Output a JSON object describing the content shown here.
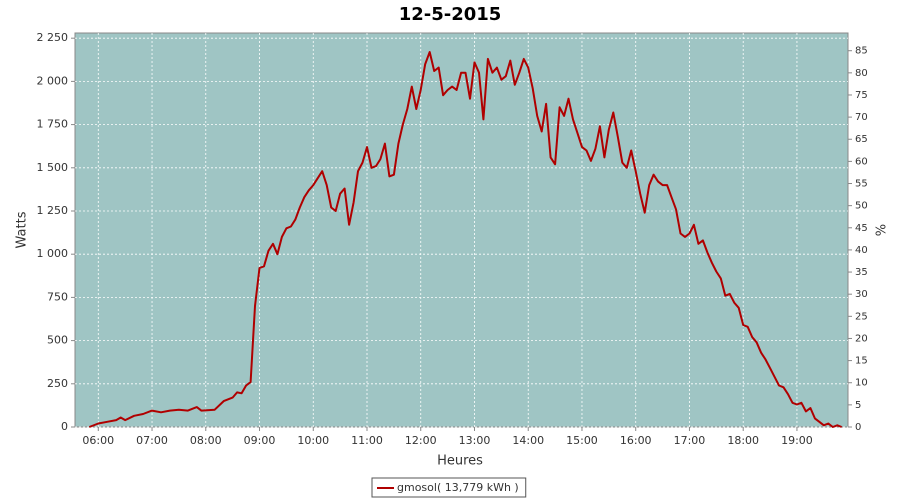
{
  "chart_data": {
    "type": "line",
    "title": "12-5-2015",
    "x_label": "Heures",
    "y_label": "Watts",
    "y2_label": "%",
    "x": [
      "05:50",
      "06:00",
      "06:10",
      "06:20",
      "06:25",
      "06:30",
      "06:40",
      "06:50",
      "07:00",
      "07:10",
      "07:20",
      "07:30",
      "07:40",
      "07:50",
      "07:55",
      "08:10",
      "08:20",
      "08:30",
      "08:35",
      "08:40",
      "08:45",
      "08:50",
      "08:55",
      "09:00",
      "09:05",
      "09:10",
      "09:15",
      "09:20",
      "09:25",
      "09:30",
      "09:35",
      "09:40",
      "09:45",
      "09:50",
      "09:55",
      "10:00",
      "10:05",
      "10:10",
      "10:15",
      "10:20",
      "10:25",
      "10:30",
      "10:35",
      "10:40",
      "10:45",
      "10:50",
      "10:55",
      "11:00",
      "11:05",
      "11:10",
      "11:15",
      "11:20",
      "11:25",
      "11:30",
      "11:35",
      "11:40",
      "11:45",
      "11:50",
      "11:55",
      "12:00",
      "12:05",
      "12:10",
      "12:15",
      "12:20",
      "12:25",
      "12:30",
      "12:35",
      "12:40",
      "12:45",
      "12:50",
      "12:55",
      "13:00",
      "13:05",
      "13:10",
      "13:15",
      "13:20",
      "13:25",
      "13:30",
      "13:35",
      "13:40",
      "13:45",
      "13:50",
      "13:55",
      "14:00",
      "14:05",
      "14:10",
      "14:15",
      "14:20",
      "14:25",
      "14:30",
      "14:35",
      "14:40",
      "14:45",
      "14:50",
      "14:55",
      "15:00",
      "15:05",
      "15:10",
      "15:15",
      "15:20",
      "15:25",
      "15:30",
      "15:35",
      "15:40",
      "15:45",
      "15:50",
      "15:55",
      "16:00",
      "16:05",
      "16:10",
      "16:15",
      "16:20",
      "16:25",
      "16:30",
      "16:35",
      "16:40",
      "16:45",
      "16:50",
      "16:55",
      "17:00",
      "17:05",
      "17:10",
      "17:15",
      "17:20",
      "17:25",
      "17:30",
      "17:35",
      "17:40",
      "17:45",
      "17:50",
      "17:55",
      "18:00",
      "18:05",
      "18:10",
      "18:15",
      "18:20",
      "18:25",
      "18:30",
      "18:35",
      "18:40",
      "18:45",
      "18:50",
      "18:55",
      "19:00",
      "19:05",
      "19:10",
      "19:15",
      "19:20",
      "19:25",
      "19:30",
      "19:35",
      "19:40",
      "19:45",
      "19:50"
    ],
    "series": [
      {
        "name": "gmosol( 13,779 kWh )",
        "color": "#b00000",
        "values": [
          0,
          20,
          30,
          40,
          55,
          40,
          65,
          75,
          95,
          85,
          95,
          100,
          95,
          115,
          95,
          100,
          150,
          170,
          200,
          195,
          240,
          260,
          700,
          920,
          930,
          1020,
          1060,
          1000,
          1100,
          1150,
          1160,
          1200,
          1270,
          1330,
          1370,
          1400,
          1440,
          1480,
          1400,
          1270,
          1250,
          1350,
          1380,
          1170,
          1300,
          1480,
          1530,
          1620,
          1500,
          1510,
          1550,
          1640,
          1450,
          1460,
          1640,
          1750,
          1840,
          1970,
          1840,
          1950,
          2100,
          2170,
          2060,
          2080,
          1920,
          1950,
          1970,
          1950,
          2050,
          2050,
          1900,
          2110,
          2050,
          1780,
          2130,
          2050,
          2080,
          2010,
          2030,
          2120,
          1980,
          2050,
          2130,
          2080,
          1960,
          1800,
          1710,
          1870,
          1560,
          1520,
          1850,
          1800,
          1900,
          1780,
          1700,
          1620,
          1600,
          1540,
          1610,
          1740,
          1560,
          1720,
          1820,
          1680,
          1530,
          1500,
          1600,
          1480,
          1350,
          1240,
          1400,
          1460,
          1420,
          1400,
          1400,
          1330,
          1260,
          1120,
          1100,
          1120,
          1170,
          1060,
          1080,
          1010,
          950,
          900,
          860,
          760,
          770,
          720,
          690,
          590,
          580,
          520,
          490,
          430,
          390,
          340,
          290,
          240,
          230,
          190,
          140,
          130,
          140,
          90,
          110,
          50,
          30,
          10,
          20,
          0,
          10,
          0
        ]
      }
    ],
    "xlim": [
      "05:34",
      "19:57"
    ],
    "xticks": [
      "06:00",
      "07:00",
      "08:00",
      "09:00",
      "10:00",
      "11:00",
      "12:00",
      "13:00",
      "14:00",
      "15:00",
      "16:00",
      "17:00",
      "18:00",
      "19:00"
    ],
    "ylim": [
      0,
      2280
    ],
    "yticks": [
      0,
      250,
      500,
      750,
      {
        "value": 1000,
        "label": "1 000"
      },
      {
        "value": 1250,
        "label": "1 250"
      },
      {
        "value": 1500,
        "label": "1 500"
      },
      {
        "value": 1750,
        "label": "1 750"
      },
      {
        "value": 2000,
        "label": "2 000"
      },
      {
        "value": 2250,
        "label": "2 250"
      }
    ],
    "y2lim": [
      0,
      89
    ],
    "y2ticks": [
      0,
      5,
      10,
      15,
      20,
      25,
      30,
      35,
      40,
      45,
      50,
      55,
      60,
      65,
      70,
      75,
      80,
      85
    ],
    "grid": true,
    "plot_background": "#9fc5c4"
  }
}
